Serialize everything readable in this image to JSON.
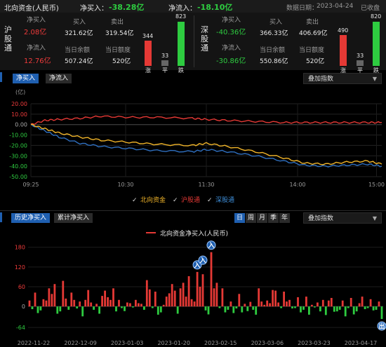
{
  "header": {
    "title": "北向资金(人民币)",
    "net_buy_label": "净买入：",
    "net_buy_value": "-38.28亿",
    "net_inflow_label": "净流入：",
    "net_inflow_value": "-18.10亿",
    "date_label": "数据日期：",
    "date_value": "2023-04-24",
    "status": "已收盘"
  },
  "hgt": {
    "name": "沪股通",
    "net_buy_label": "净买入",
    "net_buy_value": "2.08亿",
    "buy_label": "买入",
    "buy_value": "321.62亿",
    "sell_label": "卖出",
    "sell_value": "319.54亿",
    "net_inflow_label": "净流入",
    "net_inflow_value": "12.76亿",
    "balance_label": "当日余额",
    "balance_value": "507.24亿",
    "quota_label": "当日额度",
    "quota_value": "520亿",
    "up_count": "344",
    "flat_count": "33",
    "down_count": "823",
    "up_label": "涨",
    "flat_label": "平",
    "down_label": "跌"
  },
  "sgt": {
    "name": "深股通",
    "net_buy_label": "净买入",
    "net_buy_value": "-40.36亿",
    "buy_label": "买入",
    "buy_value": "366.33亿",
    "sell_label": "卖出",
    "sell_value": "406.69亿",
    "net_inflow_label": "净流入",
    "net_inflow_value": "-30.86亿",
    "balance_label": "当日余额",
    "balance_value": "550.86亿",
    "quota_label": "当日额度",
    "quota_value": "520亿",
    "up_count": "490",
    "flat_count": "33",
    "down_count": "820",
    "up_label": "涨",
    "flat_label": "平",
    "down_label": "跌"
  },
  "intraday": {
    "tabs": [
      "净买入",
      "净流入"
    ],
    "overlay_label": "叠加指数",
    "unit": "(亿)",
    "legend": [
      "北向资金",
      "沪股通",
      "深股通"
    ],
    "colors": {
      "north": "#f0b429",
      "hgt": "#e53935",
      "sgt": "#2f6fbf"
    }
  },
  "history": {
    "tabs": [
      "历史净买入",
      "累计净买入"
    ],
    "periods": [
      "日",
      "周",
      "月",
      "季",
      "年"
    ],
    "overlay_label": "叠加指数",
    "legend": "北向资金净买入(人民币)",
    "markers": [
      "入",
      "入",
      "入",
      "入",
      "出"
    ]
  },
  "chart_data": [
    {
      "type": "line",
      "x_ticks": [
        "09:25",
        "10:30",
        "11:30",
        "14:00",
        "15:00"
      ],
      "ylim": [
        -50,
        20
      ],
      "y_ticks": [
        20.0,
        10.0,
        0.0,
        -10.0,
        -20.0,
        -30.0,
        -40.0,
        -50.0
      ],
      "ylabel": "(亿)",
      "series": [
        {
          "name": "北向资金",
          "x": [
            0,
            0.04,
            0.08,
            0.14,
            0.2,
            0.28,
            0.36,
            0.46,
            0.5,
            0.56,
            0.64,
            0.72,
            0.78,
            0.84,
            0.9,
            0.96,
            1.0
          ],
          "values": [
            0,
            -4,
            -8,
            -12,
            -15,
            -17,
            -19,
            -20,
            -18,
            -21,
            -26,
            -32,
            -37,
            -38,
            -36,
            -35,
            -38
          ]
        },
        {
          "name": "沪股通",
          "x": [
            0,
            0.04,
            0.08,
            0.14,
            0.2,
            0.28,
            0.36,
            0.46,
            0.5,
            0.56,
            0.64,
            0.72,
            0.78,
            0.84,
            0.9,
            0.96,
            1.0
          ],
          "values": [
            0,
            4,
            5,
            6,
            8,
            7,
            7,
            6,
            5,
            4,
            3,
            2,
            2,
            2,
            2,
            2,
            2
          ]
        },
        {
          "name": "深股通",
          "x": [
            0,
            0.04,
            0.08,
            0.14,
            0.2,
            0.28,
            0.36,
            0.46,
            0.5,
            0.56,
            0.64,
            0.72,
            0.78,
            0.84,
            0.9,
            0.96,
            1.0
          ],
          "values": [
            0,
            -6,
            -12,
            -18,
            -21,
            -23,
            -25,
            -26,
            -24,
            -26,
            -30,
            -35,
            -39,
            -40,
            -39,
            -38,
            -40
          ]
        }
      ]
    },
    {
      "type": "bar",
      "x_ticks": [
        "2022-11-22",
        "2022-12-09",
        "2023-01-03",
        "2023-01-20",
        "2023-02-15",
        "2023-03-06",
        "2023-03-23",
        "2023-04-17"
      ],
      "y_ticks": [
        180,
        120,
        60,
        0,
        -64
      ],
      "ylim": [
        -70,
        190
      ],
      "values": [
        18,
        -8,
        42,
        -20,
        -12,
        22,
        18,
        55,
        38,
        68,
        -22,
        -15,
        78,
        24,
        -10,
        42,
        20,
        -6,
        15,
        -30,
        20,
        50,
        12,
        -10,
        8,
        -22,
        32,
        48,
        28,
        20,
        55,
        -15,
        20,
        -5,
        -14,
        12,
        10,
        -3,
        20,
        10,
        8,
        -10,
        80,
        52,
        -5,
        45,
        -25,
        -18,
        5,
        30,
        40,
        68,
        48,
        -22,
        55,
        72,
        30,
        92,
        22,
        15,
        105,
        60,
        98,
        -12,
        -24,
        165,
        55,
        72,
        -5,
        55,
        -18,
        -10,
        15,
        -20,
        -6,
        38,
        -18,
        8,
        -14,
        14,
        -10,
        -25,
        55,
        15,
        5,
        18,
        10,
        50,
        48,
        12,
        -5,
        45,
        15,
        20,
        -6,
        -5,
        28,
        -18,
        -10,
        30,
        -25,
        5,
        -3,
        12,
        -15,
        20,
        -26,
        18,
        26,
        -16,
        -15,
        -10,
        18,
        -30,
        -5,
        26,
        -24,
        -15,
        10,
        30,
        -8,
        -5,
        22,
        -12,
        -10,
        15,
        -38
      ]
    }
  ]
}
